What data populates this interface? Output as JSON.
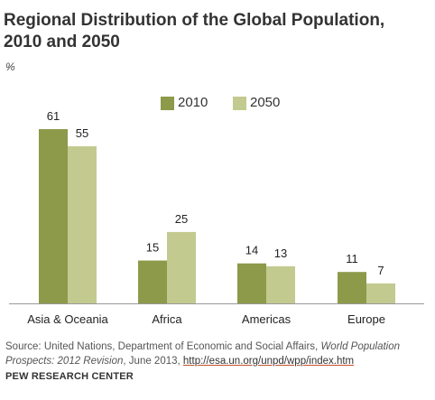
{
  "title_line1": "Regional Distribution of the Global Population,",
  "title_line2": "2010 and 2050",
  "unit": "%",
  "source": {
    "prefix": "Source: United Nations, Department of Economic and Social Affairs, ",
    "report": "World Population Prospects: 2012 Revision",
    "middle": ", June 2013, ",
    "link": "http://esa.un.org/unpd/wpp/index.htm"
  },
  "footer": "PEW RESEARCH CENTER",
  "colors": {
    "series_2010": "#8c9a4a",
    "series_2050": "#c3ca8f",
    "axis": "#999999"
  },
  "chart_data": {
    "type": "bar",
    "title": "Regional Distribution of the Global Population, 2010 and 2050",
    "ylabel": "%",
    "categories": [
      "Asia & Oceania",
      "Africa",
      "Americas",
      "Europe"
    ],
    "series": [
      {
        "name": "2010",
        "values": [
          61,
          15,
          14,
          11
        ]
      },
      {
        "name": "2050",
        "values": [
          55,
          25,
          13,
          7
        ]
      }
    ],
    "ylim": [
      0,
      61
    ],
    "grid": false,
    "legend": "top-center"
  }
}
